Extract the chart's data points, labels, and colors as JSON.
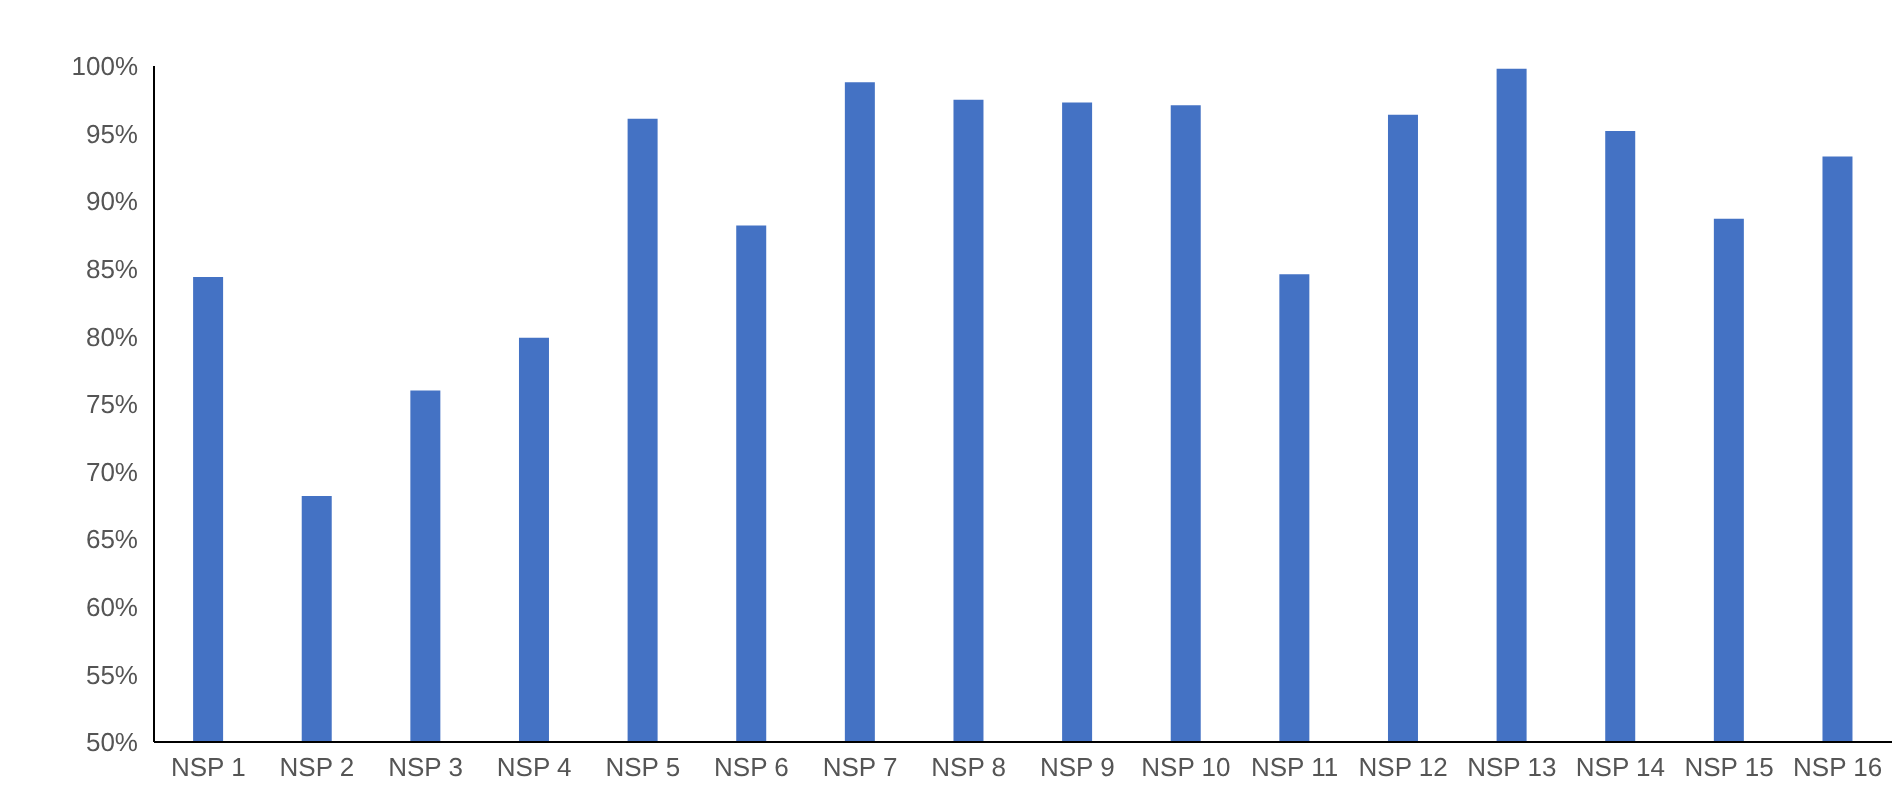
{
  "chart_data": {
    "type": "bar",
    "categories": [
      "NSP 1",
      "NSP 2",
      "NSP 3",
      "NSP 4",
      "NSP 5",
      "NSP 6",
      "NSP 7",
      "NSP 8",
      "NSP 9",
      "NSP 10",
      "NSP 11",
      "NSP 12",
      "NSP 13",
      "NSP 14",
      "NSP 15",
      "NSP 16"
    ],
    "values": [
      84.4,
      68.2,
      76.0,
      79.9,
      96.1,
      88.2,
      98.8,
      97.5,
      97.3,
      97.1,
      84.6,
      96.4,
      99.8,
      95.2,
      88.7,
      93.3
    ],
    "color": "#4472c4",
    "ylim": [
      50,
      100
    ],
    "yticks": [
      {
        "value": 50,
        "label": "50%"
      },
      {
        "value": 55,
        "label": "55%"
      },
      {
        "value": 60,
        "label": "60%"
      },
      {
        "value": 65,
        "label": "65%"
      },
      {
        "value": 70,
        "label": "70%"
      },
      {
        "value": 75,
        "label": "75%"
      },
      {
        "value": 80,
        "label": "80%"
      },
      {
        "value": 85,
        "label": "85%"
      },
      {
        "value": 90,
        "label": "90%"
      },
      {
        "value": 95,
        "label": "95%"
      },
      {
        "value": 100,
        "label": "100%"
      }
    ],
    "grid": false,
    "legend": false
  }
}
